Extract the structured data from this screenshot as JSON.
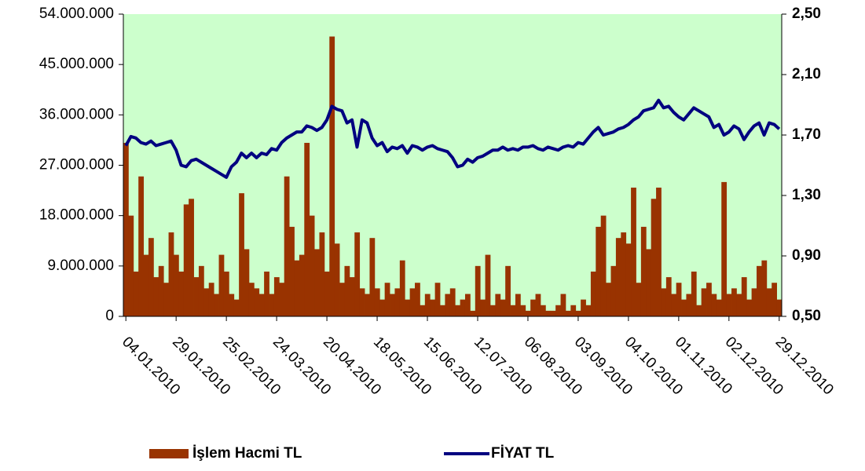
{
  "chart_data": {
    "type": "bar",
    "categories": [
      "04.01.2010",
      null,
      null,
      null,
      null,
      null,
      null,
      null,
      null,
      null,
      "29.01.2010",
      null,
      null,
      null,
      null,
      null,
      null,
      null,
      null,
      null,
      "25.02.2010",
      null,
      null,
      null,
      null,
      null,
      null,
      null,
      null,
      null,
      "24.03.2010",
      null,
      null,
      null,
      null,
      null,
      null,
      null,
      null,
      null,
      "20.04.2010",
      null,
      null,
      null,
      null,
      null,
      null,
      null,
      null,
      null,
      "18.05.2010",
      null,
      null,
      null,
      null,
      null,
      null,
      null,
      null,
      null,
      "15.06.2010",
      null,
      null,
      null,
      null,
      null,
      null,
      null,
      null,
      null,
      "12.07.2010",
      null,
      null,
      null,
      null,
      null,
      null,
      null,
      null,
      null,
      "06.08.2010",
      null,
      null,
      null,
      null,
      null,
      null,
      null,
      null,
      null,
      "03.09.2010",
      null,
      null,
      null,
      null,
      null,
      null,
      null,
      null,
      null,
      "04.10.2010",
      null,
      null,
      null,
      null,
      null,
      null,
      null,
      null,
      null,
      "01.11.2010",
      null,
      null,
      null,
      null,
      null,
      null,
      null,
      null,
      null,
      "02.12.2010",
      null,
      null,
      null,
      null,
      null,
      null,
      null,
      null,
      null,
      "29.12.2010"
    ],
    "series": [
      {
        "name": "İşlem Hacmi TL",
        "type": "bar",
        "color": "#993300",
        "values": [
          31000000,
          18000000,
          8000000,
          25000000,
          11000000,
          14000000,
          7000000,
          9000000,
          6000000,
          15000000,
          11000000,
          8000000,
          20000000,
          21000000,
          7000000,
          9000000,
          5000000,
          6000000,
          4000000,
          11000000,
          8000000,
          4000000,
          3000000,
          22000000,
          12000000,
          6000000,
          5000000,
          4000000,
          8000000,
          4000000,
          7000000,
          6000000,
          25000000,
          16000000,
          10000000,
          11000000,
          31000000,
          18000000,
          12000000,
          15000000,
          8000000,
          50000000,
          13000000,
          6000000,
          9000000,
          7000000,
          15000000,
          5000000,
          4000000,
          14000000,
          5000000,
          3000000,
          6000000,
          4000000,
          5000000,
          10000000,
          3000000,
          5000000,
          6000000,
          2000000,
          4000000,
          3000000,
          6000000,
          2000000,
          4000000,
          5000000,
          2000000,
          3000000,
          4000000,
          1000000,
          9000000,
          3000000,
          11000000,
          2000000,
          4000000,
          3000000,
          9000000,
          2000000,
          4000000,
          2000000,
          1000000,
          3000000,
          4000000,
          2000000,
          1000000,
          1000000,
          2000000,
          4000000,
          1000000,
          2000000,
          1000000,
          3000000,
          2000000,
          8000000,
          16000000,
          18000000,
          6000000,
          9000000,
          14000000,
          15000000,
          13000000,
          23000000,
          6000000,
          16000000,
          12000000,
          21000000,
          23000000,
          5000000,
          7000000,
          4000000,
          6000000,
          3000000,
          4000000,
          8000000,
          2000000,
          5000000,
          6000000,
          4000000,
          3000000,
          24000000,
          4000000,
          5000000,
          4000000,
          7000000,
          3000000,
          5000000,
          9000000,
          10000000,
          5000000,
          6000000,
          3000000
        ]
      },
      {
        "name": "FİYAT TL",
        "type": "line",
        "axis": "y2",
        "color": "#000080",
        "values": [
          1.63,
          1.69,
          1.68,
          1.65,
          1.64,
          1.66,
          1.63,
          1.64,
          1.65,
          1.66,
          1.6,
          1.5,
          1.49,
          1.53,
          1.54,
          1.52,
          1.5,
          1.48,
          1.46,
          1.44,
          1.42,
          1.49,
          1.52,
          1.58,
          1.55,
          1.58,
          1.55,
          1.58,
          1.57,
          1.61,
          1.6,
          1.65,
          1.68,
          1.7,
          1.72,
          1.72,
          1.76,
          1.75,
          1.73,
          1.75,
          1.8,
          1.89,
          1.87,
          1.86,
          1.78,
          1.8,
          1.62,
          1.8,
          1.78,
          1.68,
          1.63,
          1.65,
          1.59,
          1.62,
          1.61,
          1.63,
          1.58,
          1.63,
          1.62,
          1.6,
          1.62,
          1.63,
          1.61,
          1.6,
          1.59,
          1.55,
          1.49,
          1.5,
          1.54,
          1.52,
          1.55,
          1.56,
          1.58,
          1.6,
          1.6,
          1.62,
          1.6,
          1.61,
          1.6,
          1.62,
          1.62,
          1.63,
          1.61,
          1.6,
          1.62,
          1.61,
          1.6,
          1.62,
          1.63,
          1.62,
          1.65,
          1.64,
          1.68,
          1.72,
          1.75,
          1.7,
          1.71,
          1.72,
          1.74,
          1.75,
          1.77,
          1.8,
          1.82,
          1.86,
          1.87,
          1.88,
          1.93,
          1.88,
          1.89,
          1.85,
          1.82,
          1.8,
          1.84,
          1.88,
          1.86,
          1.84,
          1.82,
          1.75,
          1.77,
          1.7,
          1.72,
          1.76,
          1.74,
          1.67,
          1.72,
          1.76,
          1.78,
          1.7,
          1.78,
          1.77,
          1.74
        ]
      }
    ],
    "ylim": [
      0,
      54000000
    ],
    "yticks": [
      0,
      {
        "value": 9000000,
        "label": "9.000.000"
      },
      {
        "value": 18000000,
        "label": "18.000.000"
      },
      {
        "value": 27000000,
        "label": "27.000.000"
      },
      {
        "value": 36000000,
        "label": "36.000.000"
      },
      {
        "value": 45000000,
        "label": "45.000.000"
      },
      {
        "value": 54000000,
        "label": "54.000.000"
      }
    ],
    "y2lim": [
      0.5,
      2.5
    ],
    "y2ticks": [
      {
        "value": 0.5,
        "label": "0,50"
      },
      {
        "value": 0.9,
        "label": "0,90"
      },
      {
        "value": 1.3,
        "label": "1,30"
      },
      {
        "value": 1.7,
        "label": "1,70"
      },
      {
        "value": 2.1,
        "label": "2,10"
      },
      {
        "value": 2.5,
        "label": "2,50"
      }
    ],
    "background": "#ccffcc"
  }
}
